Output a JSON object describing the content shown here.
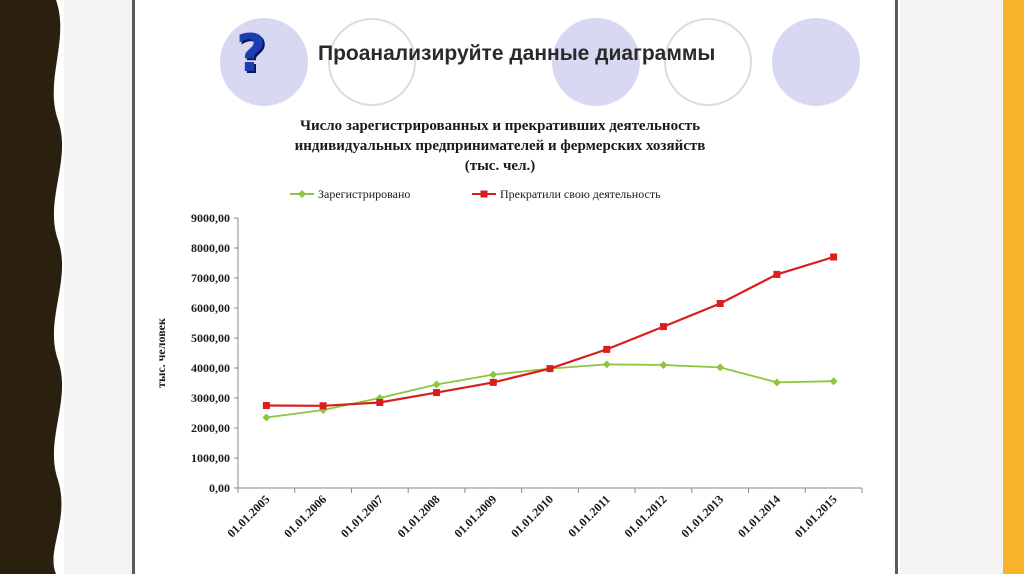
{
  "slide": {
    "heading": "Проанализируйте данные диаграммы",
    "question_icon": "?",
    "accent_colors": {
      "circle_fill": "#d8d8f2",
      "question_mark": "#1b3fb3",
      "right_band": "#f7b42c",
      "left_band": "#2b2010"
    }
  },
  "chart_data": {
    "type": "line",
    "title_lines": [
      "Число зарегистрированных  и прекративших деятельность",
      "индивидуальных предпринимателей и фермерских хозяйств",
      "(тыс. чел.)"
    ],
    "ylabel": "тыс. человек",
    "xlabel": "",
    "categories": [
      "01.01.2005",
      "01.01.2006",
      "01.01.2007",
      "01.01.2008",
      "01.01.2009",
      "01.01.2010",
      "01.01.2011",
      "01.01.2012",
      "01.01.2013",
      "01.01.2014",
      "01.01.2015"
    ],
    "y_ticks": [
      "0,00",
      "1000,00",
      "2000,00",
      "3000,00",
      "4000,00",
      "5000,00",
      "6000,00",
      "7000,00",
      "8000,00",
      "9000,00"
    ],
    "ylim": [
      0,
      9000
    ],
    "grid": false,
    "legend_position": "top",
    "series": [
      {
        "name": "Зарегистрировано",
        "color": "#8cc63f",
        "marker": "diamond",
        "values": [
          2350,
          2600,
          3000,
          3450,
          3780,
          3980,
          4120,
          4100,
          4020,
          3520,
          3560
        ]
      },
      {
        "name": "Прекратили свою деятельность",
        "color": "#d81e1e",
        "marker": "square",
        "values": [
          2750,
          2740,
          2850,
          3180,
          3520,
          3980,
          4620,
          5380,
          6150,
          7120,
          7700
        ]
      }
    ]
  }
}
